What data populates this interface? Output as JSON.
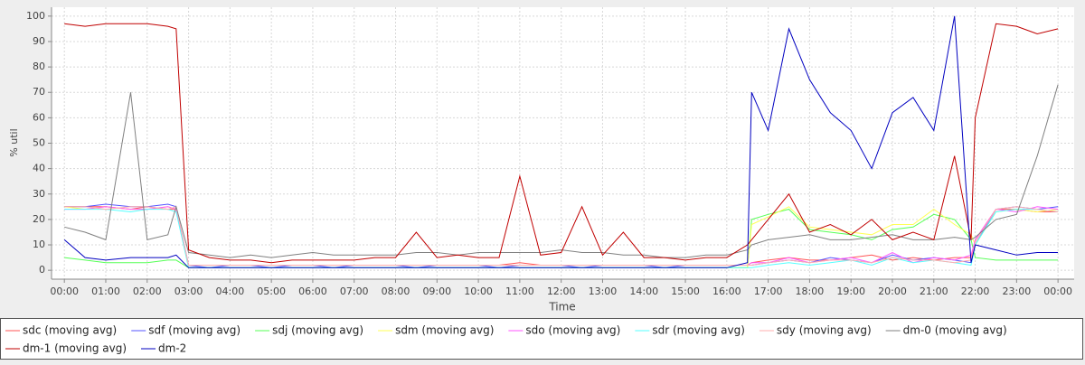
{
  "chart_data": {
    "type": "line",
    "x_label": "Time",
    "y_label": "% util",
    "grid": true,
    "xlim": [
      -0.31,
      24.39
    ],
    "ylim": [
      -3.5,
      103.5
    ],
    "xticks": [
      {
        "value": 0,
        "label": "00:00"
      },
      {
        "value": 1,
        "label": "01:00"
      },
      {
        "value": 2,
        "label": "02:00"
      },
      {
        "value": 3,
        "label": "03:00"
      },
      {
        "value": 4,
        "label": "04:00"
      },
      {
        "value": 5,
        "label": "05:00"
      },
      {
        "value": 6,
        "label": "06:00"
      },
      {
        "value": 7,
        "label": "07:00"
      },
      {
        "value": 8,
        "label": "08:00"
      },
      {
        "value": 9,
        "label": "09:00"
      },
      {
        "value": 10,
        "label": "10:00"
      },
      {
        "value": 11,
        "label": "11:00"
      },
      {
        "value": 12,
        "label": "12:00"
      },
      {
        "value": 13,
        "label": "13:00"
      },
      {
        "value": 14,
        "label": "14:00"
      },
      {
        "value": 15,
        "label": "15:00"
      },
      {
        "value": 16,
        "label": "16:00"
      },
      {
        "value": 17,
        "label": "17:00"
      },
      {
        "value": 18,
        "label": "18:00"
      },
      {
        "value": 19,
        "label": "19:00"
      },
      {
        "value": 20,
        "label": "20:00"
      },
      {
        "value": 21,
        "label": "21:00"
      },
      {
        "value": 22,
        "label": "22:00"
      },
      {
        "value": 23,
        "label": "23:00"
      },
      {
        "value": 24,
        "label": "00:00"
      }
    ],
    "yticks": [
      0,
      10,
      20,
      30,
      40,
      50,
      60,
      70,
      80,
      90,
      100
    ],
    "x": [
      0,
      0.5,
      1,
      1.6,
      2,
      2.5,
      2.7,
      3,
      3.5,
      4,
      4.5,
      5,
      5.5,
      6,
      6.5,
      7,
      7.5,
      8,
      8.5,
      9,
      9.5,
      10,
      10.5,
      11,
      11.5,
      12,
      12.5,
      13,
      13.5,
      14,
      14.5,
      15,
      15.5,
      16,
      16.5,
      16.6,
      17,
      17.5,
      18,
      18.5,
      19,
      19.5,
      20,
      20.5,
      21,
      21.5,
      21.9,
      22,
      22.5,
      23,
      23.5,
      24
    ],
    "series": [
      {
        "name": "sdc (moving avg)",
        "color": "#ff5555",
        "values": [
          25,
          25,
          25,
          24,
          25,
          24,
          24,
          2,
          2,
          2,
          2,
          2,
          2,
          2,
          2,
          2,
          2,
          2,
          2,
          2,
          2,
          2,
          2,
          3,
          2,
          2,
          2,
          2,
          2,
          2,
          2,
          2,
          2,
          2,
          2,
          3,
          4,
          5,
          4,
          4,
          5,
          6,
          4,
          5,
          4,
          5,
          5,
          12,
          24,
          24,
          23,
          23
        ]
      },
      {
        "name": "sdf (moving avg)",
        "color": "#5555ff",
        "values": [
          25,
          25,
          26,
          25,
          25,
          26,
          25,
          2,
          1,
          2,
          2,
          1,
          2,
          2,
          1,
          2,
          2,
          2,
          1,
          2,
          2,
          2,
          1,
          2,
          2,
          2,
          1,
          2,
          2,
          2,
          1,
          2,
          2,
          2,
          2,
          2,
          3,
          4,
          3,
          5,
          4,
          3,
          6,
          4,
          5,
          4,
          3,
          10,
          24,
          25,
          24,
          25
        ]
      },
      {
        "name": "sdj (moving avg)",
        "color": "#55ff55",
        "values": [
          5,
          4,
          3,
          3,
          3,
          4,
          4,
          1,
          1,
          1,
          1,
          1,
          1,
          1,
          1,
          1,
          1,
          1,
          1,
          1,
          1,
          1,
          1,
          1,
          1,
          1,
          1,
          1,
          1,
          1,
          1,
          1,
          1,
          1,
          1,
          20,
          22,
          24,
          16,
          15,
          14,
          12,
          16,
          17,
          22,
          20,
          12,
          5,
          4,
          4,
          4,
          4
        ]
      },
      {
        "name": "sdm (moving avg)",
        "color": "#ffff55",
        "values": [
          25,
          24,
          25,
          24,
          24,
          25,
          24,
          1,
          1,
          1,
          1,
          1,
          1,
          1,
          1,
          1,
          1,
          1,
          1,
          1,
          1,
          1,
          1,
          1,
          1,
          1,
          1,
          1,
          1,
          1,
          1,
          1,
          1,
          1,
          1,
          18,
          21,
          25,
          17,
          16,
          15,
          14,
          18,
          18,
          24,
          18,
          14,
          10,
          23,
          24,
          23,
          24
        ]
      },
      {
        "name": "sdo (moving avg)",
        "color": "#ff55ff",
        "values": [
          24,
          24,
          25,
          24,
          24,
          25,
          24,
          2,
          2,
          2,
          2,
          2,
          2,
          2,
          2,
          2,
          2,
          2,
          2,
          2,
          2,
          2,
          2,
          2,
          2,
          2,
          2,
          2,
          2,
          2,
          2,
          2,
          2,
          2,
          2,
          3,
          3,
          5,
          3,
          4,
          5,
          3,
          7,
          3,
          5,
          4,
          6,
          12,
          24,
          23,
          25,
          24
        ]
      },
      {
        "name": "sdr (moving avg)",
        "color": "#55ffff",
        "values": [
          24,
          24,
          24,
          23,
          24,
          24,
          23,
          1,
          1,
          1,
          1,
          1,
          1,
          1,
          1,
          1,
          1,
          1,
          1,
          1,
          1,
          1,
          1,
          1,
          1,
          1,
          1,
          1,
          1,
          1,
          1,
          1,
          1,
          1,
          1,
          1,
          2,
          3,
          2,
          3,
          4,
          2,
          5,
          3,
          4,
          3,
          2,
          10,
          23,
          24,
          24,
          23
        ]
      },
      {
        "name": "sdy (moving avg)",
        "color": "#ffafaf",
        "values": [
          25,
          25,
          24,
          25,
          25,
          24,
          25,
          2,
          2,
          2,
          2,
          2,
          2,
          2,
          2,
          2,
          2,
          2,
          2,
          2,
          2,
          2,
          2,
          2,
          2,
          2,
          2,
          2,
          2,
          2,
          2,
          2,
          2,
          2,
          2,
          2,
          3,
          4,
          3,
          4,
          4,
          3,
          5,
          4,
          4,
          3,
          4,
          11,
          24,
          25,
          24,
          23
        ]
      },
      {
        "name": "dm-0 (moving avg)",
        "color": "#808080",
        "values": [
          17,
          15,
          12,
          70,
          12,
          14,
          25,
          7,
          6,
          5,
          6,
          5,
          6,
          7,
          6,
          6,
          6,
          6,
          7,
          7,
          6,
          7,
          7,
          7,
          7,
          8,
          7,
          7,
          6,
          6,
          5,
          5,
          6,
          6,
          8,
          10,
          12,
          13,
          14,
          12,
          12,
          13,
          14,
          12,
          12,
          13,
          12,
          13,
          20,
          22,
          45,
          73
        ]
      },
      {
        "name": "dm-1 (moving avg)",
        "color": "#c00000",
        "values": [
          97,
          96,
          97,
          97,
          97,
          96,
          95,
          8,
          5,
          4,
          4,
          3,
          4,
          4,
          4,
          4,
          5,
          5,
          15,
          5,
          6,
          5,
          5,
          37,
          6,
          7,
          25,
          6,
          15,
          5,
          5,
          4,
          5,
          5,
          10,
          12,
          20,
          30,
          15,
          18,
          14,
          20,
          12,
          15,
          12,
          45,
          12,
          60,
          97,
          96,
          93,
          95
        ]
      },
      {
        "name": "dm-2",
        "color": "#0000c0",
        "values": [
          12,
          5,
          4,
          5,
          5,
          5,
          6,
          1,
          1,
          1,
          1,
          1,
          1,
          1,
          1,
          1,
          1,
          1,
          1,
          1,
          1,
          1,
          1,
          1,
          1,
          1,
          1,
          1,
          1,
          1,
          1,
          1,
          1,
          1,
          3,
          70,
          55,
          95,
          75,
          62,
          55,
          40,
          62,
          68,
          55,
          100,
          3,
          10,
          8,
          6,
          7,
          7
        ]
      }
    ]
  }
}
